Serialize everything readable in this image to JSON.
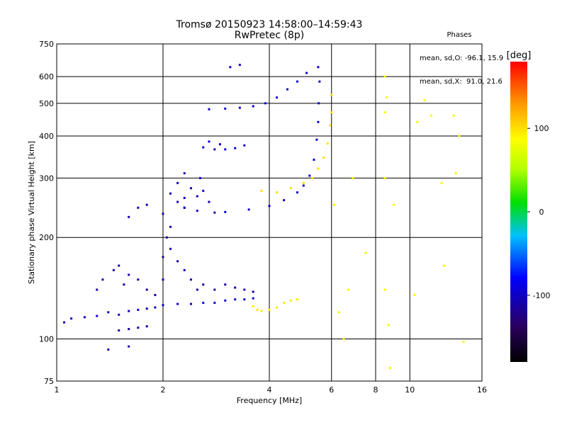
{
  "header": {
    "title_line1": "Tromsø 20150923 14:58:00–14:59:43",
    "title_line2": "RwPretec (8p)",
    "stats_title": "Phases",
    "stats_line1": "mean, sd,O: -96.1, 15.9",
    "stats_line2": "mean, sd,X:  91.0, 21.6"
  },
  "colorbar": {
    "unit": "deg",
    "ticks": [
      -100,
      0,
      100
    ],
    "range": [
      -180,
      180
    ]
  },
  "chart_data": {
    "type": "scatter",
    "title": "Tromsø 20150923 14:58:00–14:59:43",
    "subtitle": "RwPretec (8p)",
    "xlabel": "Frequency [MHz]",
    "ylabel": "Stationary phase Virtual Height [km]",
    "xscale": "log",
    "yscale": "log",
    "xlim": [
      1,
      16
    ],
    "ylim": [
      75,
      750
    ],
    "xticks": [
      1,
      2,
      4,
      6,
      8,
      10,
      16
    ],
    "yticks": [
      75,
      100,
      200,
      300,
      400,
      500,
      600,
      750
    ],
    "grid": true,
    "color_scale": "phase [deg], rainbow, -180 to 180",
    "series": [
      {
        "trace": "low O-mode echoes",
        "phase": -100,
        "points": [
          [
            1.05,
            112
          ],
          [
            1.1,
            115
          ],
          [
            1.2,
            116
          ],
          [
            1.3,
            117
          ],
          [
            1.4,
            120
          ],
          [
            1.5,
            118
          ],
          [
            1.6,
            121
          ],
          [
            1.7,
            122
          ],
          [
            1.8,
            123
          ],
          [
            1.9,
            124
          ],
          [
            2.0,
            126
          ],
          [
            2.2,
            127
          ],
          [
            2.4,
            127
          ],
          [
            2.6,
            128
          ],
          [
            2.8,
            128
          ],
          [
            3.0,
            130
          ],
          [
            3.2,
            131
          ],
          [
            3.4,
            131
          ],
          [
            3.6,
            132
          ]
        ]
      },
      {
        "trace": "low spread echoes",
        "phase": -110,
        "points": [
          [
            1.3,
            140
          ],
          [
            1.35,
            150
          ],
          [
            1.45,
            160
          ],
          [
            1.5,
            165
          ],
          [
            1.55,
            145
          ],
          [
            1.6,
            155
          ],
          [
            1.7,
            150
          ],
          [
            1.8,
            140
          ],
          [
            1.9,
            135
          ],
          [
            2.0,
            150
          ],
          [
            2.0,
            175
          ],
          [
            2.05,
            200
          ],
          [
            2.1,
            185
          ],
          [
            2.2,
            170
          ],
          [
            2.3,
            160
          ],
          [
            2.4,
            150
          ],
          [
            2.5,
            140
          ],
          [
            2.6,
            145
          ],
          [
            2.8,
            140
          ],
          [
            3.0,
            145
          ],
          [
            3.2,
            142
          ],
          [
            3.4,
            140
          ],
          [
            3.6,
            138
          ],
          [
            1.6,
            107
          ],
          [
            1.7,
            108
          ],
          [
            1.8,
            109
          ],
          [
            1.5,
            106
          ],
          [
            1.4,
            93
          ],
          [
            1.6,
            95
          ],
          [
            2.0,
            235
          ],
          [
            2.1,
            215
          ],
          [
            2.2,
            255
          ],
          [
            2.3,
            245
          ]
        ]
      },
      {
        "trace": "low X-mode echoes",
        "phase": 95,
        "points": [
          [
            3.6,
            125
          ],
          [
            3.7,
            122
          ],
          [
            3.8,
            121
          ],
          [
            4.0,
            122
          ],
          [
            4.2,
            124
          ],
          [
            4.4,
            128
          ],
          [
            4.6,
            130
          ],
          [
            4.8,
            131
          ]
        ]
      },
      {
        "trace": "F-layer O-mode trace",
        "phase": -100,
        "points": [
          [
            2.3,
            245
          ],
          [
            2.5,
            240
          ],
          [
            2.8,
            237
          ],
          [
            3.0,
            238
          ],
          [
            3.5,
            242
          ],
          [
            4.0,
            248
          ],
          [
            4.4,
            258
          ],
          [
            4.8,
            272
          ],
          [
            5.0,
            285
          ],
          [
            5.2,
            305
          ],
          [
            5.35,
            340
          ],
          [
            5.45,
            390
          ],
          [
            5.5,
            440
          ],
          [
            5.52,
            500
          ],
          [
            5.55,
            580
          ],
          [
            5.5,
            640
          ]
        ]
      },
      {
        "trace": "F-layer spread",
        "phase": -105,
        "points": [
          [
            2.1,
            270
          ],
          [
            2.2,
            290
          ],
          [
            2.3,
            310
          ],
          [
            2.4,
            280
          ],
          [
            2.5,
            265
          ],
          [
            2.6,
            275
          ],
          [
            2.7,
            255
          ],
          [
            2.3,
            262
          ],
          [
            2.55,
            300
          ],
          [
            1.7,
            245
          ],
          [
            1.8,
            250
          ],
          [
            1.6,
            230
          ]
        ]
      },
      {
        "trace": "F-layer X-mode trace",
        "phase": 100,
        "points": [
          [
            3.8,
            275
          ],
          [
            4.2,
            272
          ],
          [
            4.6,
            280
          ],
          [
            5.0,
            290
          ],
          [
            5.3,
            300
          ],
          [
            5.5,
            320
          ],
          [
            5.7,
            345
          ],
          [
            5.85,
            380
          ],
          [
            5.95,
            430
          ],
          [
            6.0,
            470
          ],
          [
            6.0,
            530
          ]
        ]
      },
      {
        "trace": "second hop echoes",
        "phase": -100,
        "points": [
          [
            2.6,
            370
          ],
          [
            2.8,
            365
          ],
          [
            3.0,
            365
          ],
          [
            3.2,
            368
          ],
          [
            3.4,
            375
          ],
          [
            2.7,
            385
          ],
          [
            2.9,
            378
          ],
          [
            2.7,
            480
          ],
          [
            3.0,
            482
          ],
          [
            3.3,
            485
          ],
          [
            3.6,
            490
          ],
          [
            3.9,
            500
          ],
          [
            4.2,
            520
          ],
          [
            4.5,
            550
          ],
          [
            4.8,
            580
          ],
          [
            5.1,
            615
          ],
          [
            3.1,
            640
          ],
          [
            3.3,
            650
          ]
        ]
      },
      {
        "trace": "scattered echoes above 6 MHz",
        "phase": 80,
        "points": [
          [
            6.1,
            250
          ],
          [
            6.3,
            120
          ],
          [
            6.5,
            100
          ],
          [
            6.7,
            140
          ],
          [
            6.9,
            300
          ],
          [
            7.5,
            180
          ],
          [
            8.5,
            600
          ],
          [
            8.5,
            300
          ],
          [
            8.5,
            140
          ],
          [
            8.7,
            110
          ],
          [
            8.8,
            82
          ],
          [
            10.3,
            135
          ],
          [
            10.5,
            440
          ],
          [
            11,
            510
          ],
          [
            11.5,
            460
          ],
          [
            12.3,
            290
          ],
          [
            12.5,
            165
          ],
          [
            13.3,
            460
          ],
          [
            13.8,
            400
          ],
          [
            14.2,
            98
          ],
          [
            13.5,
            310
          ],
          [
            8.5,
            470
          ],
          [
            8.6,
            520
          ],
          [
            9.0,
            250
          ]
        ]
      }
    ]
  }
}
